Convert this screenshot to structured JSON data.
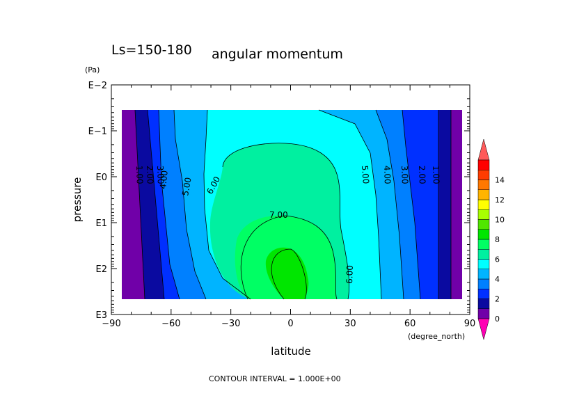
{
  "chart_data": {
    "type": "contour",
    "title_left": "Ls=150-180",
    "title": "angular momentum",
    "xlabel": "latitude",
    "ylabel": "pressure",
    "x_unit": "(degree_north)",
    "y_unit": "(Pa)",
    "xlim": [
      -90,
      90
    ],
    "x_ticks": [
      "−90",
      "−60",
      "−30",
      "0",
      "30",
      "60",
      "90"
    ],
    "x_tick_values": [
      -90,
      -60,
      -30,
      0,
      30,
      60,
      90
    ],
    "y_scale": "log",
    "y_ticks": [
      "E−2",
      "E−1",
      "E0",
      "E1",
      "E2",
      "E3"
    ],
    "y_tick_exponents": [
      -2,
      -1,
      0,
      1,
      2,
      3
    ],
    "contour_interval_text": "CONTOUR INTERVAL = 1.000E+00",
    "contour_labels": [
      "1.00",
      "2.00",
      "3.00",
      "4.00",
      "5.00",
      "6.00",
      "7.00",
      "3.00",
      "2.00",
      "1.00",
      "4.00",
      "5.00",
      "6.00"
    ],
    "colorbar": {
      "ticks": [
        "0",
        "2",
        "4",
        "6",
        "8",
        "10",
        "12",
        "14"
      ],
      "colors": [
        "#ff00b4",
        "#7000a8",
        "#0a0aa0",
        "#0030ff",
        "#0080ff",
        "#00b4ff",
        "#00ffff",
        "#00f0a0",
        "#00ff64",
        "#00e600",
        "#50e600",
        "#a8ff00",
        "#ffff00",
        "#ffb400",
        "#ff7800",
        "#ff3c00",
        "#ff0000",
        "#ff5a5a"
      ]
    },
    "fill_colors": {
      "band_0_1": "#7000a8",
      "band_1_2": "#0a0aa0",
      "band_2_3": "#0030ff",
      "band_3_4": "#0080ff",
      "band_4_5": "#00b4ff",
      "band_5_6": "#00ffff",
      "band_6_7": "#00f0a0",
      "band_7_8": "#00ff64",
      "band_8_9": "#00e600"
    }
  }
}
